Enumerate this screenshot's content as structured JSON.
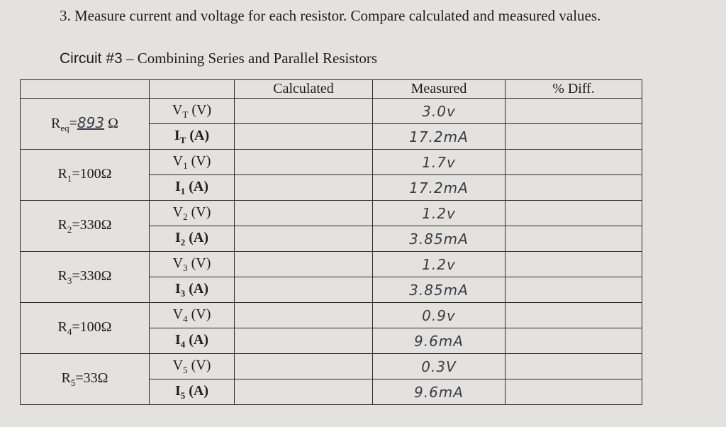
{
  "instruction": "3. Measure current and voltage for each resistor. Compare calculated and measured values.",
  "circuit_title": {
    "lead": "Circuit #3",
    "rest": "– Combining Series and Parallel Resistors"
  },
  "table": {
    "headers": [
      "Calculated",
      "Measured",
      "% Diff."
    ],
    "resistors": [
      {
        "symbol": "R",
        "sub": "eq",
        "eq": "=",
        "value": "893",
        "unit": "Ω"
      },
      {
        "symbol": "R",
        "sub": "1",
        "eq": "=",
        "value": "100",
        "unit": "Ω"
      },
      {
        "symbol": "R",
        "sub": "2",
        "eq": "=",
        "value": "330",
        "unit": "Ω"
      },
      {
        "symbol": "R",
        "sub": "3",
        "eq": "=",
        "value": "330",
        "unit": "Ω"
      },
      {
        "symbol": "R",
        "sub": "4",
        "eq": "=",
        "value": "100",
        "unit": "Ω"
      },
      {
        "symbol": "R",
        "sub": "5",
        "eq": "=",
        "value": "33",
        "unit": "Ω"
      }
    ],
    "rows": [
      {
        "symbol": "V",
        "sub": "T",
        "unit": "(V)",
        "measured": "3.0v"
      },
      {
        "symbol": "I",
        "sub": "T",
        "unit": "(A)",
        "measured": "17.2mA"
      },
      {
        "symbol": "V",
        "sub": "1",
        "unit": "(V)",
        "measured": "1.7v"
      },
      {
        "symbol": "I",
        "sub": "1",
        "unit": "(A)",
        "measured": "17.2mA"
      },
      {
        "symbol": "V",
        "sub": "2",
        "unit": "(V)",
        "measured": "1.2v"
      },
      {
        "symbol": "I",
        "sub": "2",
        "unit": "(A)",
        "measured": "3.85mA"
      },
      {
        "symbol": "V",
        "sub": "3",
        "unit": "(V)",
        "measured": "1.2v"
      },
      {
        "symbol": "I",
        "sub": "3",
        "unit": "(A)",
        "measured": "3.85mA"
      },
      {
        "symbol": "V",
        "sub": "4",
        "unit": "(V)",
        "measured": "0.9v"
      },
      {
        "symbol": "I",
        "sub": "4",
        "unit": "(A)",
        "measured": "9.6mA"
      },
      {
        "symbol": "V",
        "sub": "5",
        "unit": "(V)",
        "measured": "0.3V"
      },
      {
        "symbol": "I",
        "sub": "5",
        "unit": "(A)",
        "measured": "9.6mA"
      }
    ]
  }
}
